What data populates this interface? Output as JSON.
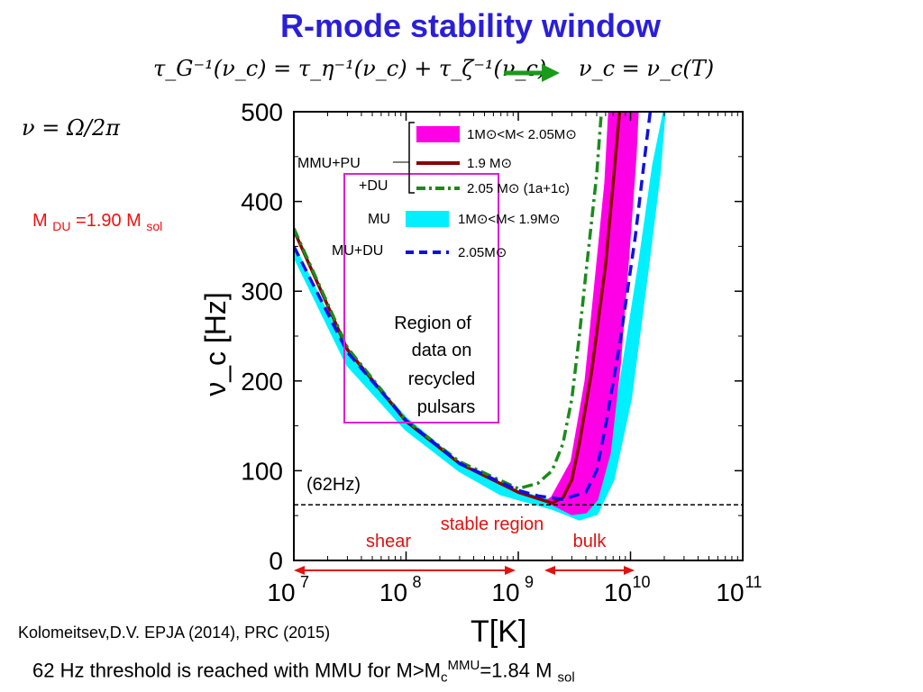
{
  "slide": {
    "title": "R-mode stability window",
    "equation_left": "τ_G⁻¹(ν_c) = τ_η⁻¹(ν_c) + τ_ζ⁻¹(ν_c)",
    "equation_right": "ν_c = ν_c(T)",
    "nu_definition": "ν = Ω/2π",
    "mdu": {
      "prefix": "M ",
      "sub1": "DU",
      "mid": " =1.90 M ",
      "sub2": "sol"
    },
    "citation": "Kolomeitsev,D.V. EPJA (2014), PRC (2015)",
    "footnote": {
      "text": "62 Hz threshold is reached with MMU for ",
      "m": "M>M",
      "sub": "c",
      "sup": "MMU",
      "val": "=1.84 M ",
      "sub2": "sol"
    },
    "colors": {
      "title": "#2a1fd8",
      "arrow": "#1a9a1a",
      "magenta": "#ff00e6",
      "cyan": "#00f0ff",
      "darkred": "#8b0000",
      "green": "#1b8b1b",
      "blue": "#1010e0",
      "red": "#e11111"
    }
  },
  "chart_data": {
    "type": "line",
    "xlabel": "T[K]",
    "ylabel": "ν_c [Hz]",
    "xscale": "log",
    "xlim": [
      10000000,
      100000000000
    ],
    "ylim": [
      0,
      500
    ],
    "x_ticks": [
      {
        "value": 10000000,
        "base": "10",
        "exp": "7"
      },
      {
        "value": 100000000,
        "base": "10",
        "exp": "8"
      },
      {
        "value": 1000000000,
        "base": "10",
        "exp": "9"
      },
      {
        "value": 10000000000,
        "base": "10",
        "exp": "10"
      },
      {
        "value": 100000000000,
        "base": "10",
        "exp": "11"
      }
    ],
    "y_ticks": [
      0,
      100,
      200,
      300,
      400,
      500
    ],
    "threshold": {
      "value": 62,
      "label": "(62Hz)"
    },
    "bands": [
      {
        "name": "1M⊙<M< 1.9M⊙",
        "color": "#00f0ff",
        "upper": [
          [
            10000000,
            350
          ],
          [
            30000000,
            230
          ],
          [
            100000000,
            158
          ],
          [
            300000000,
            108
          ],
          [
            700000000,
            82
          ],
          [
            2000000000,
            66
          ],
          [
            3500000000,
            58
          ],
          [
            5000000000,
            82
          ],
          [
            8000000000,
            190
          ],
          [
            12000000000,
            330
          ],
          [
            16000000000,
            440
          ],
          [
            20000000000,
            500
          ]
        ],
        "lower": [
          [
            10000000,
            340
          ],
          [
            30000000,
            218
          ],
          [
            100000000,
            146
          ],
          [
            300000000,
            100
          ],
          [
            700000000,
            74
          ],
          [
            2000000000,
            58
          ],
          [
            3500000000,
            46
          ],
          [
            5000000000,
            52
          ],
          [
            7000000000,
            90
          ],
          [
            10000000000,
            180
          ],
          [
            14000000000,
            320
          ],
          [
            18000000000,
            430
          ],
          [
            20000000000,
            500
          ]
        ]
      },
      {
        "name": "1M⊙<M< 2.05M⊙",
        "color": "#ff00e6",
        "upper": [
          [
            2000000000,
            70
          ],
          [
            3000000000,
            110
          ],
          [
            4000000000,
            200
          ],
          [
            5000000000,
            320
          ],
          [
            6000000000,
            420
          ],
          [
            6500000000,
            500
          ]
        ],
        "lower": [
          [
            1800000000,
            66
          ],
          [
            3000000000,
            52
          ],
          [
            4000000000,
            54
          ],
          [
            5000000000,
            68
          ],
          [
            6500000000,
            120
          ],
          [
            8000000000,
            220
          ],
          [
            9500000000,
            340
          ],
          [
            11000000000,
            450
          ],
          [
            11500000000,
            500
          ]
        ]
      }
    ],
    "series": [
      {
        "name": "1.9 M⊙",
        "color": "#8b0000",
        "style": "solid",
        "points": [
          [
            10000000,
            368
          ],
          [
            30000000,
            235
          ],
          [
            100000000,
            155
          ],
          [
            300000000,
            108
          ],
          [
            1000000000,
            76
          ],
          [
            2000000000,
            64
          ],
          [
            2500000000,
            70
          ],
          [
            3000000000,
            90
          ],
          [
            3500000000,
            130
          ],
          [
            4500000000,
            210
          ],
          [
            6000000000,
            330
          ],
          [
            7000000000,
            420
          ],
          [
            8000000000,
            500
          ]
        ]
      },
      {
        "name": "2.05 M⊙ (1a+1c)",
        "color": "#1b8b1b",
        "style": "dashdot",
        "points": [
          [
            10000000,
            370
          ],
          [
            30000000,
            237
          ],
          [
            100000000,
            156
          ],
          [
            300000000,
            110
          ],
          [
            1000000000,
            80
          ],
          [
            1500000000,
            86
          ],
          [
            2000000000,
            100
          ],
          [
            2500000000,
            130
          ],
          [
            3000000000,
            180
          ],
          [
            3500000000,
            250
          ],
          [
            4000000000,
            320
          ],
          [
            5000000000,
            430
          ],
          [
            5500000000,
            500
          ]
        ]
      },
      {
        "name": "2.05M⊙",
        "color": "#1010e0",
        "style": "dashed",
        "points": [
          [
            10000000,
            350
          ],
          [
            30000000,
            232
          ],
          [
            100000000,
            156
          ],
          [
            300000000,
            108
          ],
          [
            1000000000,
            78
          ],
          [
            1500000000,
            72
          ],
          [
            2500000000,
            68
          ],
          [
            4000000000,
            76
          ],
          [
            5000000000,
            100
          ],
          [
            6000000000,
            150
          ],
          [
            8000000000,
            240
          ],
          [
            11000000000,
            360
          ],
          [
            14000000000,
            470
          ],
          [
            15000000000,
            500
          ]
        ]
      }
    ],
    "legend": {
      "group1_label": [
        "MMU+PU",
        "+DU"
      ],
      "group2_label": "MU",
      "group3_label": "MU+DU",
      "entries": [
        "1M⊙<M< 2.05M⊙",
        "1.9 M⊙",
        "2.05 M⊙ (1a+1c)",
        "1M⊙<M< 1.9M⊙",
        "2.05M⊙"
      ]
    },
    "annotations": {
      "region": [
        "Region of",
        "data on",
        "recycled",
        "pulsars"
      ],
      "stable": "stable region",
      "shear": "shear",
      "bulk": "bulk"
    }
  }
}
